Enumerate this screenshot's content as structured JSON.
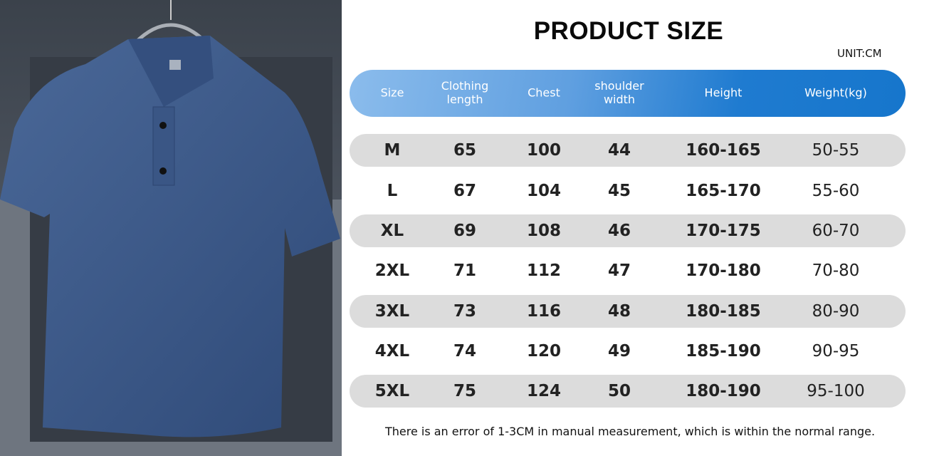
{
  "title": "PRODUCT SIZE",
  "unit": "UNIT:CM",
  "colors": {
    "header_start": "#8bbcec",
    "header_end": "#1676cc",
    "row_shade": "#dcdcdc",
    "shirt": "#3a5685"
  },
  "product_image": "navy-polo-shirt-on-hanger",
  "table": {
    "headers": [
      "Size",
      "Clothing\nlength",
      "Chest",
      "shoulder\nwidth",
      "Height",
      "Weight(kg)"
    ],
    "rows": [
      [
        "M",
        "65",
        "100",
        "44",
        "160-165",
        "50-55"
      ],
      [
        "L",
        "67",
        "104",
        "45",
        "165-170",
        "55-60"
      ],
      [
        "XL",
        "69",
        "108",
        "46",
        "170-175",
        "60-70"
      ],
      [
        "2XL",
        "71",
        "112",
        "47",
        "170-180",
        "70-80"
      ],
      [
        "3XL",
        "73",
        "116",
        "48",
        "180-185",
        "80-90"
      ],
      [
        "4XL",
        "74",
        "120",
        "49",
        "185-190",
        "90-95"
      ],
      [
        "5XL",
        "75",
        "124",
        "50",
        "180-190",
        "95-100"
      ]
    ]
  },
  "note": "There is an error of 1-3CM in manual measurement, which is within the normal range."
}
